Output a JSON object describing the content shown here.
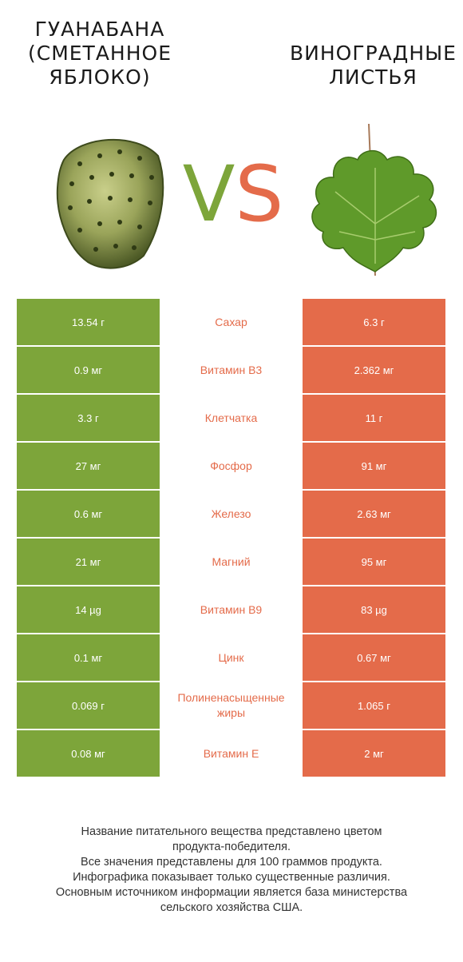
{
  "left_food": {
    "name": "ГУАНАБАНА\n(СМЕТАННОЕ\nЯБЛОКО)",
    "color": "#7da53a"
  },
  "right_food": {
    "name": "ВИНОГРАДНЫЕ\nЛИСТЬЯ",
    "color": "#e46b4a"
  },
  "vs": {
    "v": "V",
    "s": "S"
  },
  "rows": [
    {
      "left": "13.54 г",
      "nutrient": "Сахар",
      "right": "6.3 г",
      "winner": "right"
    },
    {
      "left": "0.9 мг",
      "nutrient": "Витамин B3",
      "right": "2.362 мг",
      "winner": "right"
    },
    {
      "left": "3.3 г",
      "nutrient": "Клетчатка",
      "right": "11 г",
      "winner": "right"
    },
    {
      "left": "27 мг",
      "nutrient": "Фосфор",
      "right": "91 мг",
      "winner": "right"
    },
    {
      "left": "0.6 мг",
      "nutrient": "Железо",
      "right": "2.63 мг",
      "winner": "right"
    },
    {
      "left": "21 мг",
      "nutrient": "Магний",
      "right": "95 мг",
      "winner": "right"
    },
    {
      "left": "14 µg",
      "nutrient": "Витамин B9",
      "right": "83 µg",
      "winner": "right"
    },
    {
      "left": "0.1 мг",
      "nutrient": "Цинк",
      "right": "0.67 мг",
      "winner": "right"
    },
    {
      "left": "0.069 г",
      "nutrient": "Полиненасыщенные\nжиры",
      "right": "1.065 г",
      "winner": "right"
    },
    {
      "left": "0.08 мг",
      "nutrient": "Витамин E",
      "right": "2 мг",
      "winner": "right"
    }
  ],
  "footer": [
    "Название питательного вещества представлено цветом",
    "продукта-победителя.",
    "Все значения представлены для 100 граммов продукта.",
    "Инфографика показывает только существенные различия.",
    "Основным источником информации является база министерства",
    "сельского хозяйства США."
  ]
}
